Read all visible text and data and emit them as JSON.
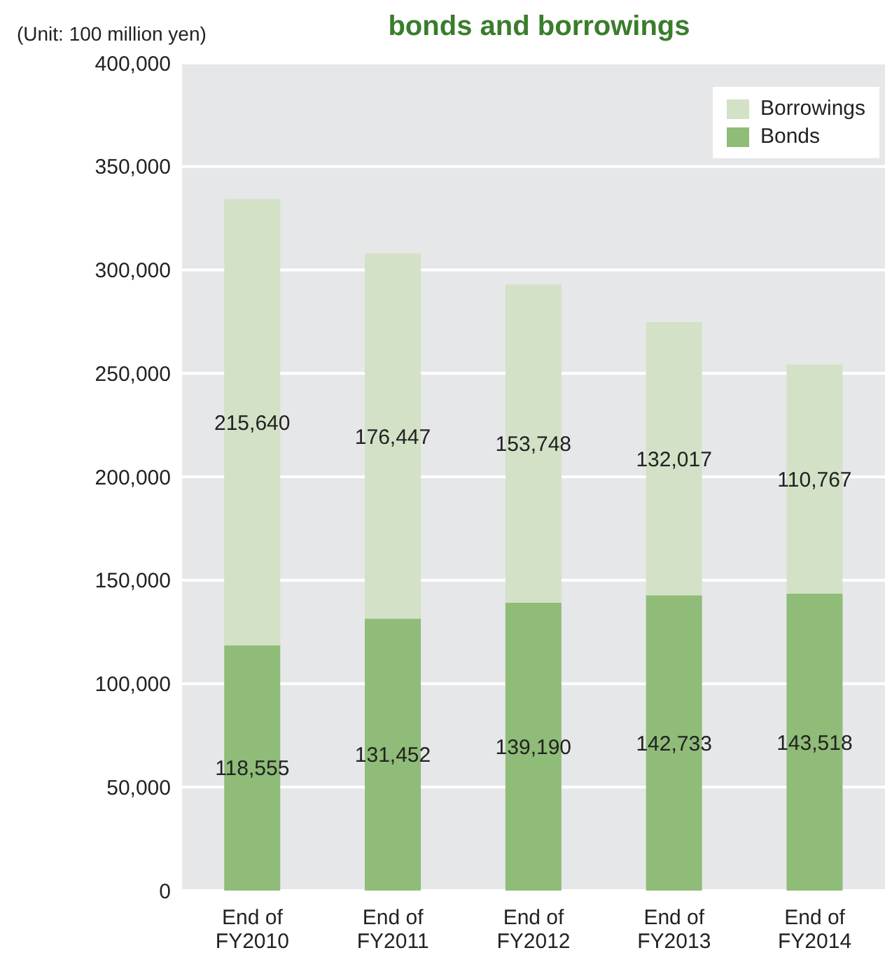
{
  "chart_data": {
    "type": "bar",
    "title": "bonds and borrowings",
    "ylabel": "(Unit: 100 million yen)",
    "categories": [
      "End of\nFY2010",
      "End of\nFY2011",
      "End of\nFY2012",
      "End of\nFY2013",
      "End of\nFY2014"
    ],
    "series": [
      {
        "name": "Bonds",
        "color": "#8fbc78",
        "values": [
          118555,
          131452,
          139190,
          142733,
          143518
        ],
        "value_labels": [
          "118,555",
          "131,452",
          "139,190",
          "142,733",
          "143,518"
        ]
      },
      {
        "name": "Borrowings",
        "color": "#d3e1c6",
        "values": [
          215640,
          176447,
          153748,
          132017,
          110767
        ],
        "value_labels": [
          "215,640",
          "176,447",
          "153,748",
          "132,017",
          "110,767"
        ]
      }
    ],
    "stacked": true,
    "ylim": [
      0,
      400000
    ],
    "yticks": [
      0,
      {
        "value": 50000,
        "label": "50,000"
      },
      {
        "value": 100000,
        "label": "100,000"
      },
      {
        "value": 150000,
        "label": "150,000"
      },
      {
        "value": 200000,
        "label": "200,000"
      },
      {
        "value": 250000,
        "label": "250,000"
      },
      {
        "value": 300000,
        "label": "300,000"
      },
      {
        "value": 350000,
        "label": "350,000"
      },
      {
        "value": 400000,
        "label": "400,000"
      }
    ],
    "grid": "y",
    "legend": "top right"
  }
}
